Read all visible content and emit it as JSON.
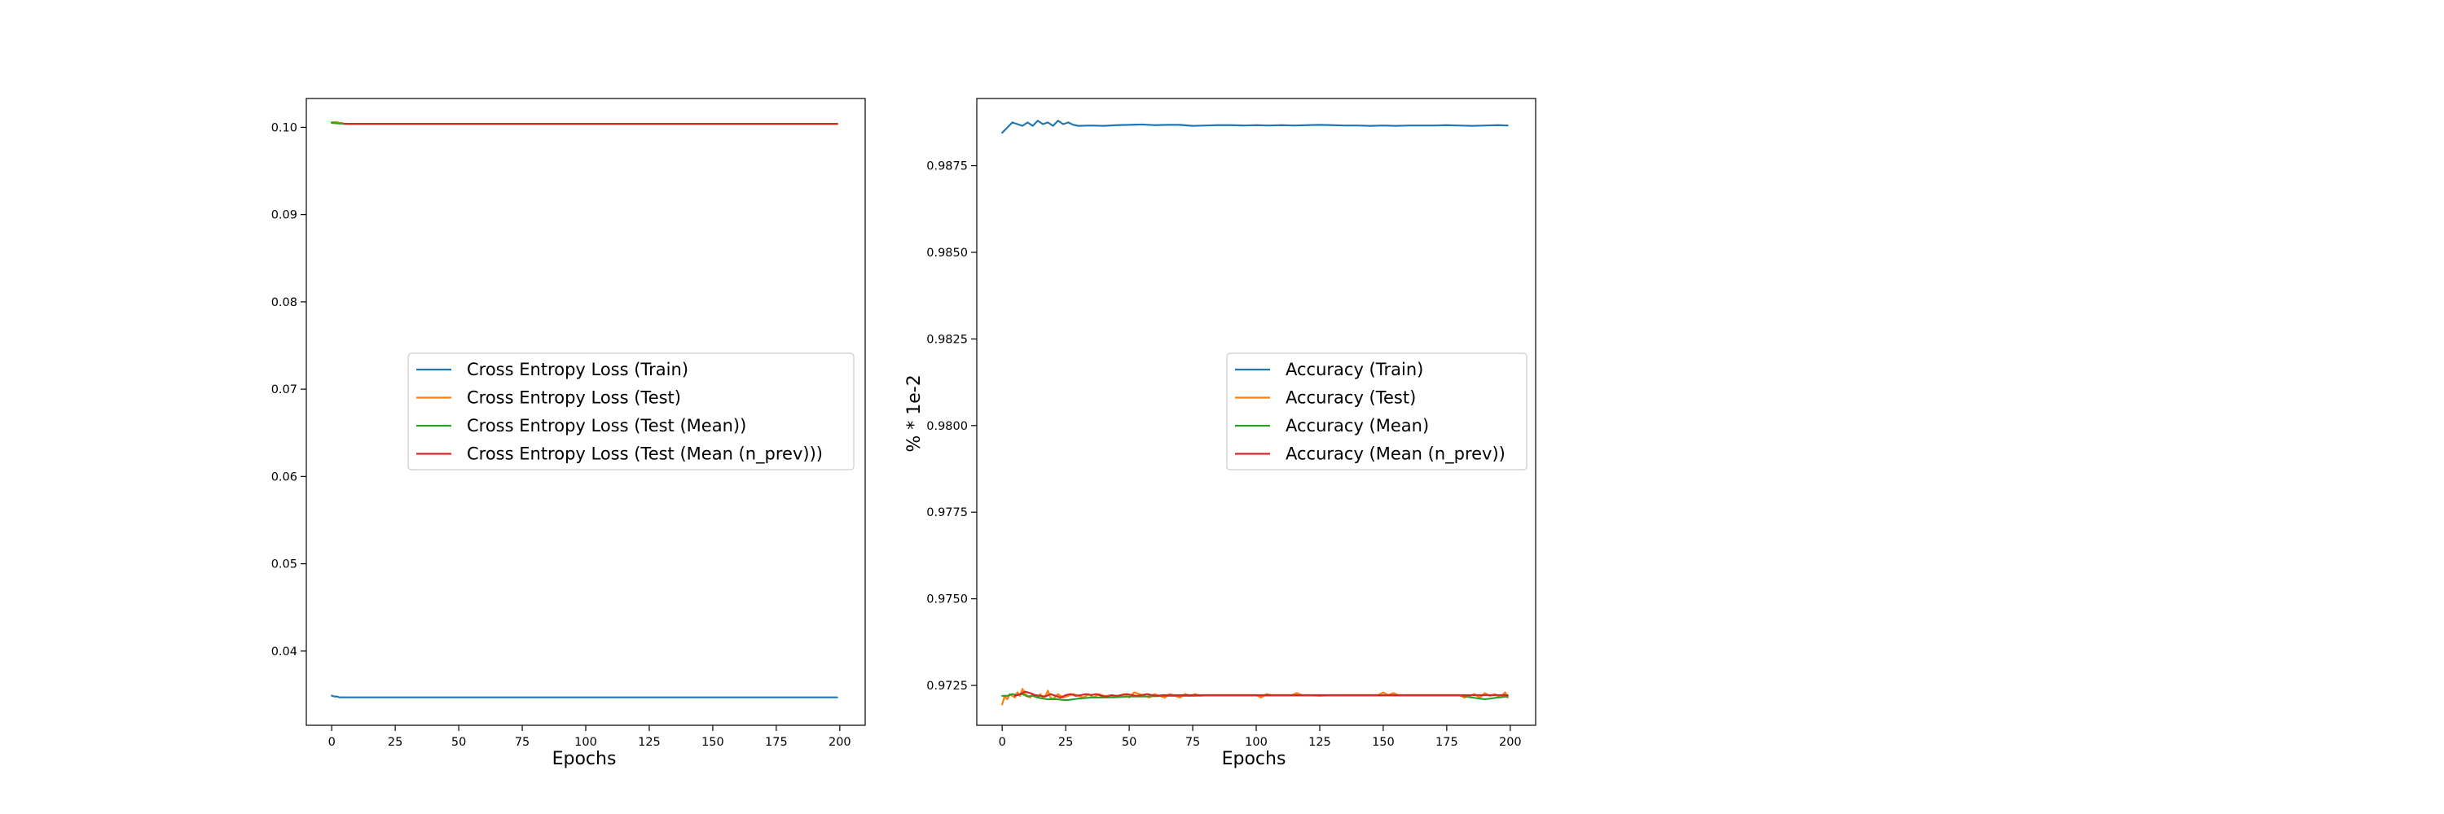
{
  "chart_data": [
    {
      "type": "line",
      "title": "",
      "xlabel": "Epochs",
      "ylabel": "",
      "xlim": [
        -10,
        210
      ],
      "ylim": [
        0.0315,
        0.1033
      ],
      "xticks": [
        0,
        25,
        50,
        75,
        100,
        125,
        150,
        175,
        200
      ],
      "xtick_labels": [
        "0",
        "25",
        "50",
        "75",
        "100",
        "125",
        "150",
        "175",
        "200"
      ],
      "yticks": [
        0.04,
        0.05,
        0.06,
        0.07,
        0.08,
        0.09,
        0.1
      ],
      "ytick_labels": [
        "0.04",
        "0.05",
        "0.06",
        "0.07",
        "0.08",
        "0.09",
        "0.10"
      ],
      "legend_position": "center-right",
      "series": [
        {
          "name": "Cross Entropy Loss (Train)",
          "color": "#1f77b4",
          "x": [
            0,
            1,
            2,
            3,
            4,
            5,
            6,
            8,
            10,
            12,
            15,
            20,
            25,
            50,
            75,
            100,
            125,
            150,
            175,
            199
          ],
          "values": [
            0.0349,
            0.0348,
            0.0348,
            0.0347,
            0.0347,
            0.0347,
            0.0347,
            0.0347,
            0.0347,
            0.0347,
            0.0347,
            0.0347,
            0.0347,
            0.0347,
            0.0347,
            0.0347,
            0.0347,
            0.0347,
            0.0347,
            0.0347
          ]
        },
        {
          "name": "Cross Entropy Loss (Test)",
          "color": "#ff7f0e",
          "x": [
            0,
            1,
            2,
            3,
            4,
            5,
            6,
            8,
            10,
            12,
            15,
            20,
            25,
            50,
            75,
            100,
            125,
            150,
            175,
            199
          ],
          "values": [
            0.1006,
            0.1006,
            0.1006,
            0.1005,
            0.1005,
            0.1004,
            0.1004,
            0.1004,
            0.1004,
            0.1004,
            0.1004,
            0.1004,
            0.1004,
            0.1004,
            0.1004,
            0.1004,
            0.1004,
            0.1004,
            0.1004,
            0.1004
          ]
        },
        {
          "name": "Cross Entropy Loss (Test (Mean))",
          "color": "#2ca02c",
          "x": [
            0,
            5,
            10,
            25,
            50,
            75,
            100,
            125,
            150,
            175,
            199
          ],
          "values": [
            0.1005,
            0.1004,
            0.1004,
            0.1004,
            0.1004,
            0.1004,
            0.1004,
            0.1004,
            0.1004,
            0.1004,
            0.1004
          ]
        },
        {
          "name": "Cross Entropy Loss (Test (Mean (n_prev)))",
          "color": "#d62728",
          "x": [
            5,
            10,
            25,
            50,
            75,
            100,
            125,
            150,
            175,
            199
          ],
          "values": [
            0.1004,
            0.1004,
            0.1004,
            0.1004,
            0.1004,
            0.1004,
            0.1004,
            0.1004,
            0.1004,
            0.1004
          ]
        }
      ]
    },
    {
      "type": "line",
      "title": "",
      "xlabel": "Epochs",
      "ylabel": "% * 1e-2",
      "xlim": [
        -10,
        210
      ],
      "ylim": [
        0.97135,
        0.98944
      ],
      "xticks": [
        0,
        25,
        50,
        75,
        100,
        125,
        150,
        175,
        200
      ],
      "xtick_labels": [
        "0",
        "25",
        "50",
        "75",
        "100",
        "125",
        "150",
        "175",
        "200"
      ],
      "yticks": [
        0.9725,
        0.975,
        0.9775,
        0.98,
        0.9825,
        0.985,
        0.9875
      ],
      "ytick_labels": [
        "0.9725",
        "0.9750",
        "0.9775",
        "0.9800",
        "0.9825",
        "0.9850",
        "0.9875"
      ],
      "legend_position": "center-right",
      "series": [
        {
          "name": "Accuracy (Train)",
          "color": "#1f77b4",
          "x": [
            0,
            2,
            4,
            6,
            8,
            10,
            12,
            14,
            16,
            18,
            20,
            22,
            24,
            26,
            28,
            30,
            35,
            40,
            45,
            50,
            55,
            60,
            65,
            70,
            75,
            80,
            85,
            90,
            95,
            100,
            105,
            110,
            115,
            120,
            125,
            130,
            135,
            140,
            145,
            150,
            155,
            160,
            165,
            170,
            175,
            180,
            185,
            190,
            195,
            199
          ],
          "values": [
            0.98845,
            0.9886,
            0.98875,
            0.9887,
            0.98865,
            0.98875,
            0.98865,
            0.9888,
            0.9887,
            0.98875,
            0.98865,
            0.9888,
            0.9887,
            0.98875,
            0.98868,
            0.98865,
            0.98866,
            0.98865,
            0.98867,
            0.98868,
            0.98869,
            0.98867,
            0.98868,
            0.98868,
            0.98865,
            0.98866,
            0.98867,
            0.98867,
            0.98866,
            0.98867,
            0.98866,
            0.98867,
            0.98866,
            0.98867,
            0.98868,
            0.98867,
            0.98866,
            0.98866,
            0.98865,
            0.98866,
            0.98865,
            0.98866,
            0.98866,
            0.98866,
            0.98867,
            0.98866,
            0.98865,
            0.98866,
            0.98867,
            0.98866
          ]
        },
        {
          "name": "Accuracy (Test)",
          "color": "#ff7f0e",
          "x": [
            0,
            1,
            2,
            3,
            4,
            5,
            6,
            7,
            8,
            9,
            10,
            11,
            12,
            13,
            14,
            15,
            16,
            17,
            18,
            19,
            20,
            22,
            24,
            26,
            28,
            30,
            32,
            34,
            36,
            38,
            40,
            42,
            44,
            46,
            48,
            50,
            52,
            54,
            56,
            58,
            60,
            62,
            64,
            66,
            68,
            70,
            72,
            74,
            76,
            78,
            80,
            85,
            90,
            95,
            100,
            102,
            104,
            106,
            110,
            114,
            116,
            118,
            120,
            125,
            130,
            135,
            140,
            145,
            148,
            150,
            152,
            154,
            156,
            160,
            165,
            170,
            175,
            180,
            182,
            184,
            186,
            188,
            190,
            192,
            194,
            196,
            198,
            199
          ],
          "values": [
            0.97195,
            0.9722,
            0.9721,
            0.97225,
            0.9722,
            0.97215,
            0.9723,
            0.9722,
            0.9724,
            0.97225,
            0.9722,
            0.97215,
            0.97225,
            0.9722,
            0.97215,
            0.97225,
            0.97215,
            0.9722,
            0.97235,
            0.97215,
            0.9721,
            0.97225,
            0.97215,
            0.9722,
            0.97225,
            0.9722,
            0.97215,
            0.97225,
            0.97215,
            0.97225,
            0.9722,
            0.9722,
            0.97215,
            0.9722,
            0.97225,
            0.97215,
            0.9723,
            0.97225,
            0.9722,
            0.97215,
            0.97225,
            0.9722,
            0.97215,
            0.97225,
            0.9722,
            0.97215,
            0.97225,
            0.9722,
            0.97225,
            0.9722,
            0.97222,
            0.97222,
            0.97222,
            0.97222,
            0.97222,
            0.97215,
            0.97225,
            0.97222,
            0.97222,
            0.97222,
            0.97228,
            0.97222,
            0.97222,
            0.9722,
            0.97222,
            0.97222,
            0.97222,
            0.97222,
            0.97222,
            0.9723,
            0.97222,
            0.97228,
            0.97222,
            0.97222,
            0.97222,
            0.97222,
            0.97222,
            0.97222,
            0.97215,
            0.9722,
            0.97225,
            0.97215,
            0.97228,
            0.9722,
            0.97225,
            0.97215,
            0.9723,
            0.97215
          ]
        },
        {
          "name": "Accuracy (Mean)",
          "color": "#2ca02c",
          "x": [
            0,
            2,
            4,
            6,
            8,
            10,
            12,
            14,
            16,
            18,
            20,
            22,
            24,
            26,
            28,
            30,
            35,
            40,
            45,
            50,
            55,
            60,
            65,
            70,
            75,
            80,
            90,
            100,
            120,
            140,
            160,
            180,
            185,
            190,
            195,
            199
          ],
          "values": [
            0.9722,
            0.9722,
            0.97225,
            0.97222,
            0.97225,
            0.97218,
            0.9722,
            0.97215,
            0.97212,
            0.9721,
            0.9721,
            0.9721,
            0.97208,
            0.97208,
            0.9721,
            0.97212,
            0.97215,
            0.97215,
            0.97216,
            0.97218,
            0.97218,
            0.97219,
            0.9722,
            0.9722,
            0.9722,
            0.97221,
            0.97221,
            0.97221,
            0.97221,
            0.97221,
            0.97221,
            0.97221,
            0.97215,
            0.9721,
            0.97215,
            0.97218
          ]
        },
        {
          "name": "Accuracy (Mean (n_prev))",
          "color": "#d62728",
          "x": [
            5,
            7,
            9,
            11,
            13,
            15,
            17,
            19,
            21,
            23,
            25,
            27,
            29,
            31,
            33,
            35,
            37,
            39,
            41,
            43,
            45,
            47,
            49,
            51,
            53,
            55,
            57,
            59,
            61,
            63,
            65,
            70,
            75,
            80,
            90,
            100,
            120,
            140,
            160,
            180,
            199
          ],
          "values": [
            0.9722,
            0.97225,
            0.97232,
            0.97228,
            0.97222,
            0.9722,
            0.97218,
            0.97225,
            0.9722,
            0.97215,
            0.97222,
            0.97225,
            0.9722,
            0.97222,
            0.97225,
            0.97222,
            0.97225,
            0.9722,
            0.97218,
            0.97222,
            0.9722,
            0.97222,
            0.97225,
            0.97222,
            0.9722,
            0.97222,
            0.97225,
            0.97222,
            0.9722,
            0.97222,
            0.97222,
            0.97222,
            0.97222,
            0.97222,
            0.97222,
            0.97222,
            0.97222,
            0.97222,
            0.97222,
            0.97222,
            0.97222
          ]
        }
      ]
    }
  ]
}
